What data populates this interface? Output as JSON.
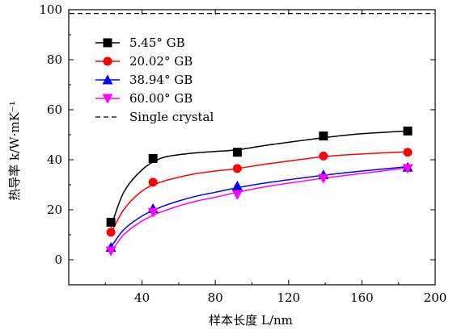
{
  "chart_data": {
    "type": "scatter",
    "xlabel": "样本长度 L/nm",
    "ylabel": "热导率 k/W·mK⁻¹",
    "xlim": [
      0,
      200
    ],
    "ylim": [
      -10,
      100
    ],
    "x_ticks": [
      40,
      80,
      120,
      160,
      200
    ],
    "y_ticks": [
      0,
      20,
      40,
      60,
      80,
      100
    ],
    "grid": false,
    "legend_position": "top-left",
    "series": [
      {
        "name": "5.45° GB",
        "marker": "square",
        "color": "#000000",
        "x": [
          23,
          46,
          92,
          139,
          185
        ],
        "y": [
          15,
          40.5,
          43,
          49.5,
          51.5
        ],
        "fit_x": [
          23,
          30,
          40,
          50,
          60,
          70,
          80,
          92,
          110,
          139,
          160,
          185
        ],
        "fit_y": [
          13,
          27,
          36,
          40.5,
          42,
          42.8,
          43.3,
          44,
          46,
          48.8,
          50.4,
          51.5
        ]
      },
      {
        "name": "20.02° GB",
        "marker": "circle",
        "color": "#ff0000",
        "x": [
          23,
          46,
          92,
          139,
          185
        ],
        "y": [
          11,
          31,
          36.5,
          41.5,
          43
        ],
        "fit_x": [
          23,
          30,
          40,
          50,
          60,
          70,
          80,
          92,
          110,
          139,
          160,
          185
        ],
        "fit_y": [
          10.5,
          20,
          27.5,
          31,
          33,
          34.5,
          35.5,
          36.5,
          38.5,
          41.2,
          42.3,
          43.2
        ]
      },
      {
        "name": "38.94° GB",
        "marker": "triangle-up",
        "color": "#0000ff",
        "x": [
          23,
          46,
          92,
          139,
          185
        ],
        "y": [
          5,
          20.5,
          29.5,
          34,
          37
        ],
        "fit_x": [
          23,
          30,
          40,
          50,
          60,
          70,
          80,
          92,
          110,
          139,
          160,
          185
        ],
        "fit_y": [
          5,
          12,
          17.5,
          21,
          23.5,
          25.5,
          27,
          28.8,
          31,
          33.8,
          35.5,
          37.2
        ]
      },
      {
        "name": "60.00° GB",
        "marker": "triangle-down",
        "color": "#ff00ff",
        "x": [
          23,
          46,
          92,
          139,
          185
        ],
        "y": [
          3.5,
          19,
          26,
          32.5,
          36.5
        ],
        "fit_x": [
          23,
          30,
          40,
          50,
          60,
          70,
          80,
          92,
          110,
          139,
          160,
          185
        ],
        "fit_y": [
          3,
          10,
          15.5,
          19,
          21.5,
          23.5,
          25,
          27,
          29.5,
          32.6,
          34.5,
          36.8
        ]
      }
    ],
    "reference_line": {
      "name": "Single crystal",
      "y": 98.5,
      "style": "dashed",
      "color": "#000000"
    }
  }
}
